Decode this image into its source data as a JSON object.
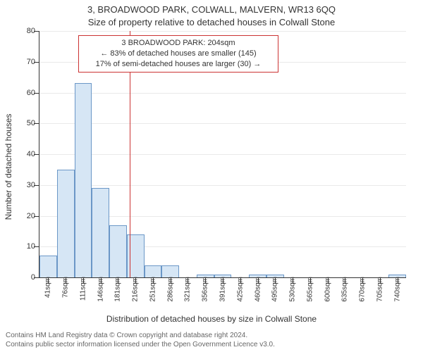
{
  "title_line1": "3, BROADWOOD PARK, COLWALL, MALVERN, WR13 6QQ",
  "title_line2": "Size of property relative to detached houses in Colwall Stone",
  "ylabel": "Number of detached houses",
  "xlabel": "Distribution of detached houses by size in Colwall Stone",
  "footer_line1": "Contains HM Land Registry data © Crown copyright and database right 2024.",
  "footer_line2": "Contains public sector information licensed under the Open Government Licence v3.0.",
  "ylabel_fontsize": 12,
  "xlabel_fontsize": 12,
  "title_fontsize": 13,
  "footer_color": "#666666",
  "chart": {
    "type": "histogram",
    "ylim": [
      0,
      80
    ],
    "ytick_step": 10,
    "bar_count": 21,
    "bar_fill": "#d6e6f5",
    "bar_stroke": "#6b97c7",
    "grid_color": "#e9e9e9",
    "axis_color": "#333333",
    "background_color": "#ffffff",
    "bar_width_ratio": 1.0,
    "x_categories": [
      "41sqm",
      "76sqm",
      "111sqm",
      "146sqm",
      "181sqm",
      "216sqm",
      "251sqm",
      "286sqm",
      "321sqm",
      "356sqm",
      "391sqm",
      "425sqm",
      "460sqm",
      "495sqm",
      "530sqm",
      "565sqm",
      "600sqm",
      "635sqm",
      "670sqm",
      "705sqm",
      "740sqm"
    ],
    "values": [
      7,
      35,
      63,
      29,
      17,
      14,
      4,
      4,
      0,
      1,
      1,
      0,
      1,
      1,
      0,
      0,
      0,
      0,
      0,
      0,
      1
    ],
    "reference_line": {
      "x_value_sqm": 204,
      "color": "#cc3333",
      "width": 1
    },
    "annotation": {
      "line1": "3 BROADWOOD PARK: 204sqm",
      "line2": "← 83% of detached houses are smaller (145)",
      "line3": "17% of semi-detached houses are larger (30) →",
      "border_color": "#cc3333",
      "background_color": "#ffffff",
      "fontsize": 11
    }
  }
}
